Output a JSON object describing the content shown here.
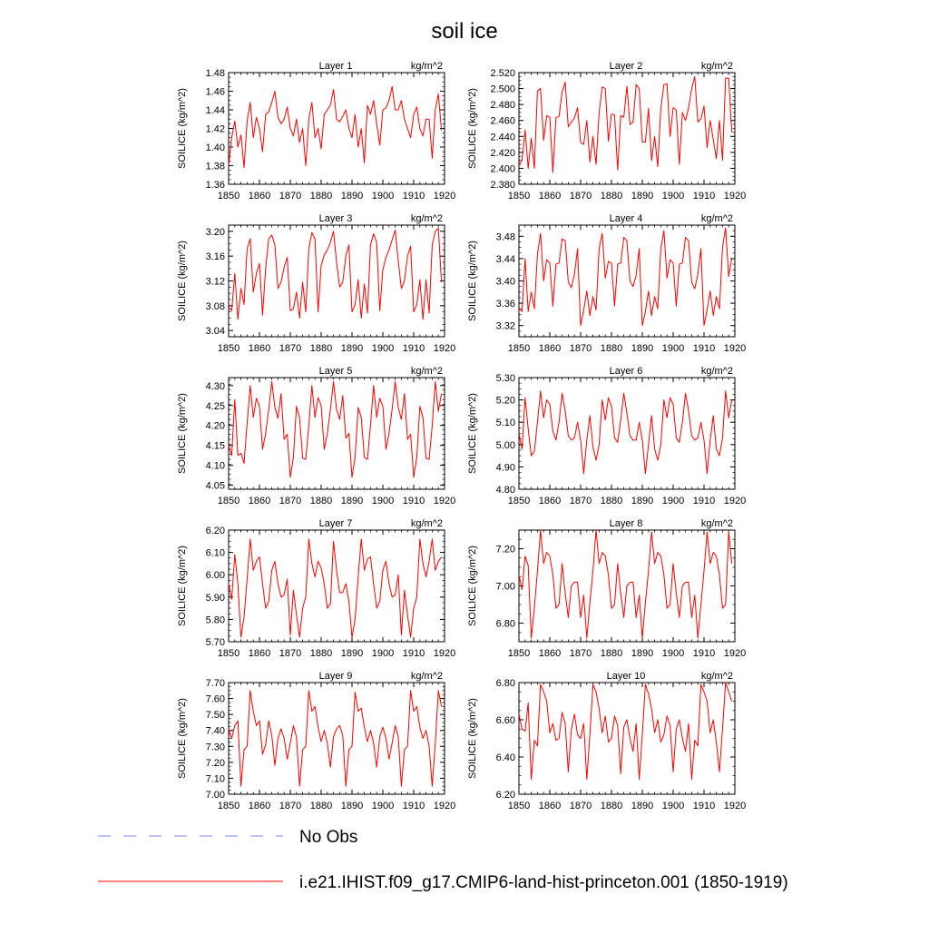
{
  "title": "soil ice",
  "colors": {
    "model_line": "#ff0000",
    "obs_line": "#8080ff",
    "axis": "#000000"
  },
  "legend": {
    "obs_label": "No Obs",
    "model_label": "i.e21.IHIST.f09_g17.CMIP6-land-hist-princeton.001 (1850-1919)"
  },
  "chart_data": [
    {
      "type": "line",
      "title": "Layer 1",
      "units": "kg/m^2",
      "ylabel": "SOILICE  (kg/m^2)",
      "xlim": [
        1850,
        1920
      ],
      "xticks": [
        1850,
        1860,
        1870,
        1880,
        1890,
        1900,
        1910,
        1920
      ],
      "ylim": [
        1.36,
        1.48
      ],
      "yticks": [
        "1.36",
        "1.38",
        "1.40",
        "1.42",
        "1.44",
        "1.46",
        "1.48"
      ],
      "x_start": 1850,
      "values": [
        1.38,
        1.41,
        1.428,
        1.4,
        1.413,
        1.378,
        1.428,
        1.448,
        1.41,
        1.432,
        1.42,
        1.395,
        1.435,
        1.438,
        1.448,
        1.46,
        1.432,
        1.425,
        1.43,
        1.443,
        1.42,
        1.412,
        1.43,
        1.405,
        1.42,
        1.38,
        1.43,
        1.448,
        1.41,
        1.42,
        1.398,
        1.435,
        1.44,
        1.445,
        1.462,
        1.43,
        1.427,
        1.433,
        1.44,
        1.42,
        1.41,
        1.435,
        1.4,
        1.42,
        1.383,
        1.445,
        1.435,
        1.45,
        1.425,
        1.402,
        1.44,
        1.442,
        1.45,
        1.465,
        1.44,
        1.44,
        1.45,
        1.43,
        1.42,
        1.41,
        1.435,
        1.443,
        1.42,
        1.412,
        1.43,
        1.43,
        1.388,
        1.44,
        1.457,
        1.418
      ]
    },
    {
      "type": "line",
      "title": "Layer 2",
      "units": "kg/m^2",
      "ylabel": "SOILICE  (kg/m^2)",
      "xlim": [
        1850,
        1920
      ],
      "xticks": [
        1850,
        1860,
        1870,
        1880,
        1890,
        1900,
        1910,
        1920
      ],
      "ylim": [
        2.38,
        2.52
      ],
      "yticks": [
        "2.380",
        "2.400",
        "2.420",
        "2.440",
        "2.460",
        "2.480",
        "2.500",
        "2.520"
      ],
      "x_start": 1850,
      "values": [
        2.405,
        2.41,
        2.448,
        2.4,
        2.438,
        2.4,
        2.497,
        2.5,
        2.435,
        2.466,
        2.464,
        2.395,
        2.464,
        2.465,
        2.496,
        2.508,
        2.452,
        2.458,
        2.463,
        2.476,
        2.432,
        2.43,
        2.46,
        2.408,
        2.44,
        2.405,
        2.47,
        2.502,
        2.5,
        2.434,
        2.468,
        2.467,
        2.398,
        2.466,
        2.464,
        2.503,
        2.455,
        2.458,
        2.505,
        2.5,
        2.433,
        2.433,
        2.475,
        2.41,
        2.44,
        2.402,
        2.475,
        2.505,
        2.506,
        2.44,
        2.476,
        2.473,
        2.405,
        2.47,
        2.46,
        2.476,
        2.5,
        2.515,
        2.458,
        2.462,
        2.478,
        2.426,
        2.46,
        2.436,
        2.412,
        2.46,
        2.41,
        2.513,
        2.513,
        2.445
      ]
    },
    {
      "type": "line",
      "title": "Layer 3",
      "units": "kg/m^2",
      "ylabel": "SOILICE  (kg/m^2)",
      "xlim": [
        1850,
        1920
      ],
      "xticks": [
        1850,
        1860,
        1870,
        1880,
        1890,
        1900,
        1910,
        1920
      ],
      "ylim": [
        3.03,
        3.21
      ],
      "yticks": [
        "3.04",
        "3.08",
        "3.12",
        "3.16",
        "3.20"
      ],
      "x_start": 1850,
      "values": [
        3.078,
        3.072,
        3.132,
        3.058,
        3.108,
        3.082,
        3.172,
        3.188,
        3.102,
        3.132,
        3.148,
        3.065,
        3.14,
        3.188,
        3.194,
        3.178,
        3.108,
        3.118,
        3.142,
        3.158,
        3.072,
        3.075,
        3.102,
        3.06,
        3.118,
        3.07,
        3.172,
        3.198,
        3.188,
        3.07,
        3.145,
        3.162,
        3.17,
        3.182,
        3.2,
        3.15,
        3.11,
        3.118,
        3.16,
        3.178,
        3.07,
        3.082,
        3.122,
        3.06,
        3.115,
        3.068,
        3.178,
        3.196,
        3.182,
        3.072,
        3.138,
        3.158,
        3.17,
        3.186,
        3.202,
        3.152,
        3.108,
        3.12,
        3.16,
        3.176,
        3.07,
        3.082,
        3.122,
        3.058,
        3.122,
        3.068,
        3.178,
        3.2,
        3.205,
        3.118
      ]
    },
    {
      "type": "line",
      "title": "Layer 4",
      "units": "kg/m^2",
      "ylabel": "SOILICE  (kg/m^2)",
      "xlim": [
        1850,
        1920
      ],
      "xticks": [
        1850,
        1860,
        1870,
        1880,
        1890,
        1900,
        1910,
        1920
      ],
      "ylim": [
        3.3,
        3.5
      ],
      "yticks": [
        "3.32",
        "3.36",
        "3.40",
        "3.44",
        "3.48"
      ],
      "x_start": 1850,
      "values": [
        3.352,
        3.345,
        3.44,
        3.345,
        3.38,
        3.35,
        3.448,
        3.485,
        3.4,
        3.438,
        3.432,
        3.355,
        3.43,
        3.432,
        3.475,
        3.472,
        3.398,
        3.388,
        3.412,
        3.458,
        3.32,
        3.348,
        3.382,
        3.338,
        3.372,
        3.348,
        3.458,
        3.485,
        3.405,
        3.435,
        3.432,
        3.355,
        3.43,
        3.432,
        3.478,
        3.472,
        3.4,
        3.39,
        3.41,
        3.458,
        3.32,
        3.345,
        3.382,
        3.338,
        3.372,
        3.35,
        3.458,
        3.49,
        3.405,
        3.438,
        3.432,
        3.355,
        3.43,
        3.432,
        3.478,
        3.472,
        3.398,
        3.386,
        3.412,
        3.458,
        3.32,
        3.348,
        3.382,
        3.338,
        3.372,
        3.35,
        3.46,
        3.495,
        3.408,
        3.44
      ]
    },
    {
      "type": "line",
      "title": "Layer 5",
      "units": "kg/m^2",
      "ylabel": "SOILICE  (kg/m^2)",
      "xlim": [
        1850,
        1920
      ],
      "xticks": [
        1850,
        1860,
        1870,
        1880,
        1890,
        1900,
        1910,
        1920
      ],
      "ylim": [
        4.04,
        4.32
      ],
      "yticks": [
        "4.05",
        "4.10",
        "4.15",
        "4.20",
        "4.25",
        "4.30"
      ],
      "x_start": 1850,
      "values": [
        4.15,
        4.125,
        4.265,
        4.125,
        4.13,
        4.105,
        4.205,
        4.3,
        4.22,
        4.268,
        4.248,
        4.14,
        4.18,
        4.24,
        4.31,
        4.245,
        4.218,
        4.28,
        4.165,
        4.178,
        4.07,
        4.12,
        4.248,
        4.22,
        4.118,
        4.115,
        4.2,
        4.3,
        4.22,
        4.27,
        4.25,
        4.14,
        4.18,
        4.24,
        4.31,
        4.24,
        4.215,
        4.275,
        4.168,
        4.18,
        4.07,
        4.12,
        4.245,
        4.22,
        4.12,
        4.115,
        4.2,
        4.3,
        4.22,
        4.268,
        4.248,
        4.14,
        4.18,
        4.24,
        4.31,
        4.245,
        4.215,
        4.28,
        4.165,
        4.178,
        4.07,
        4.12,
        4.248,
        4.22,
        4.118,
        4.115,
        4.2,
        4.31,
        4.235,
        4.28
      ]
    },
    {
      "type": "line",
      "title": "Layer 6",
      "units": "kg/m^2",
      "ylabel": "SOILICE  (kg/m^2)",
      "xlim": [
        1850,
        1920
      ],
      "xticks": [
        1850,
        1860,
        1870,
        1880,
        1890,
        1900,
        1910,
        1920
      ],
      "ylim": [
        4.8,
        5.3
      ],
      "yticks": [
        "4.80",
        "4.90",
        "5.00",
        "5.10",
        "5.20",
        "5.30"
      ],
      "x_start": 1850,
      "values": [
        5.05,
        4.98,
        5.21,
        5.07,
        4.95,
        4.97,
        5.1,
        5.24,
        5.12,
        5.2,
        5.18,
        5.06,
        5.02,
        5.1,
        5.23,
        5.15,
        5.04,
        5.02,
        5.03,
        5.1,
        5.02,
        4.87,
        5.02,
        5.13,
        4.99,
        4.93,
        5.0,
        5.2,
        5.11,
        5.21,
        5.17,
        5.03,
        5.01,
        5.11,
        5.23,
        5.14,
        5.04,
        5.02,
        5.02,
        5.1,
        5.02,
        4.87,
        5.0,
        5.13,
        4.98,
        4.93,
        5.0,
        5.2,
        5.12,
        5.21,
        5.18,
        5.03,
        5.01,
        5.1,
        5.23,
        5.15,
        5.04,
        5.02,
        5.03,
        5.1,
        5.02,
        4.87,
        5.02,
        5.13,
        4.98,
        4.95,
        5.03,
        5.24,
        5.12,
        5.2
      ]
    },
    {
      "type": "line",
      "title": "Layer 7",
      "units": "kg/m^2",
      "ylabel": "SOILICE  (kg/m^2)",
      "xlim": [
        1850,
        1920
      ],
      "xticks": [
        1850,
        1860,
        1870,
        1880,
        1890,
        1900,
        1910,
        1920
      ],
      "ylim": [
        5.7,
        6.2
      ],
      "yticks": [
        "5.70",
        "5.80",
        "5.90",
        "6.00",
        "6.10",
        "6.20"
      ],
      "x_start": 1850,
      "values": [
        5.96,
        5.89,
        6.09,
        5.96,
        5.72,
        5.81,
        5.98,
        6.16,
        6.02,
        6.06,
        6.08,
        5.96,
        5.85,
        5.88,
        6.02,
        6.06,
        5.96,
        5.9,
        5.91,
        5.98,
        5.73,
        5.93,
        5.82,
        5.72,
        5.85,
        5.9,
        6.16,
        6.05,
        5.99,
        6.06,
        6.03,
        5.96,
        5.85,
        5.87,
        6.15,
        6.02,
        5.92,
        5.92,
        5.96,
        5.88,
        5.72,
        5.8,
        5.99,
        6.16,
        6.02,
        6.07,
        6.08,
        5.96,
        5.85,
        5.88,
        6.02,
        6.06,
        5.96,
        5.9,
        5.91,
        6.0,
        5.73,
        5.93,
        5.82,
        5.72,
        5.85,
        5.9,
        6.16,
        6.05,
        5.99,
        6.06,
        6.16,
        6.02,
        6.06,
        6.08
      ]
    },
    {
      "type": "line",
      "title": "Layer 8",
      "units": "kg/m^2",
      "ylabel": "SOILICE  (kg/m^2)",
      "xlim": [
        1850,
        1920
      ],
      "xticks": [
        1850,
        1860,
        1870,
        1880,
        1890,
        1900,
        1910,
        1920
      ],
      "ylim": [
        6.7,
        7.3
      ],
      "yticks": [
        "6.80",
        "7.00",
        "7.20"
      ],
      "x_start": 1850,
      "values": [
        7.06,
        6.98,
        7.16,
        7.11,
        6.72,
        6.88,
        7.08,
        7.3,
        7.12,
        7.18,
        7.16,
        7.06,
        6.88,
        6.9,
        7.12,
        6.96,
        6.83,
        7.0,
        7.02,
        7.02,
        6.83,
        6.95,
        6.72,
        6.91,
        7.08,
        7.3,
        7.12,
        7.18,
        7.16,
        7.06,
        6.88,
        6.9,
        7.12,
        6.96,
        6.83,
        7.0,
        7.02,
        7.02,
        6.83,
        6.95,
        6.72,
        6.91,
        7.08,
        7.29,
        7.12,
        7.18,
        7.16,
        7.06,
        6.88,
        6.9,
        7.12,
        6.96,
        6.83,
        7.0,
        7.02,
        7.02,
        6.83,
        6.95,
        6.72,
        6.9,
        7.08,
        7.29,
        7.12,
        7.18,
        7.16,
        7.06,
        6.88,
        6.9,
        7.29,
        7.12
      ]
    },
    {
      "type": "line",
      "title": "Layer 9",
      "units": "kg/m^2",
      "ylabel": "SOILICE  (kg/m^2)",
      "xlim": [
        1850,
        1920
      ],
      "xticks": [
        1850,
        1860,
        1870,
        1880,
        1890,
        1900,
        1910,
        1920
      ],
      "ylim": [
        7.0,
        7.7
      ],
      "yticks": [
        "7.00",
        "7.10",
        "7.20",
        "7.30",
        "7.40",
        "7.50",
        "7.60",
        "7.70"
      ],
      "x_start": 1850,
      "values": [
        7.41,
        7.35,
        7.43,
        7.46,
        7.05,
        7.28,
        7.3,
        7.65,
        7.52,
        7.43,
        7.46,
        7.25,
        7.31,
        7.46,
        7.37,
        7.18,
        7.35,
        7.41,
        7.35,
        7.22,
        7.32,
        7.43,
        7.36,
        7.05,
        7.28,
        7.3,
        7.65,
        7.52,
        7.55,
        7.42,
        7.33,
        7.4,
        7.32,
        7.17,
        7.36,
        7.41,
        7.43,
        7.37,
        7.05,
        7.28,
        7.3,
        7.64,
        7.52,
        7.54,
        7.42,
        7.33,
        7.4,
        7.32,
        7.17,
        7.36,
        7.42,
        7.35,
        7.22,
        7.32,
        7.43,
        7.36,
        7.05,
        7.28,
        7.3,
        7.65,
        7.52,
        7.55,
        7.42,
        7.35,
        7.4,
        7.3,
        7.05,
        7.32,
        7.65,
        7.55
      ]
    },
    {
      "type": "line",
      "title": "Layer 10",
      "units": "kg/m^2",
      "ylabel": "SOILICE  (kg/m^2)",
      "xlim": [
        1850,
        1920
      ],
      "xticks": [
        1850,
        1860,
        1870,
        1880,
        1890,
        1900,
        1910,
        1920
      ],
      "ylim": [
        6.2,
        6.8
      ],
      "yticks": [
        "6.20",
        "6.40",
        "6.60",
        "6.80"
      ],
      "x_start": 1850,
      "values": [
        6.63,
        6.55,
        6.54,
        6.69,
        6.28,
        6.49,
        6.46,
        6.79,
        6.75,
        6.7,
        6.53,
        6.58,
        6.49,
        6.5,
        6.64,
        6.58,
        6.32,
        6.55,
        6.63,
        6.52,
        6.5,
        6.58,
        6.28,
        6.52,
        6.79,
        6.75,
        6.66,
        6.53,
        6.62,
        6.48,
        6.5,
        6.62,
        6.57,
        6.31,
        6.56,
        6.6,
        6.5,
        6.43,
        6.58,
        6.28,
        6.52,
        6.79,
        6.74,
        6.66,
        6.53,
        6.6,
        6.48,
        6.52,
        6.62,
        6.57,
        6.32,
        6.55,
        6.6,
        6.5,
        6.43,
        6.58,
        6.28,
        6.49,
        6.46,
        6.79,
        6.75,
        6.7,
        6.53,
        6.6,
        6.48,
        6.32,
        6.55,
        6.8,
        6.75,
        6.7
      ]
    }
  ]
}
